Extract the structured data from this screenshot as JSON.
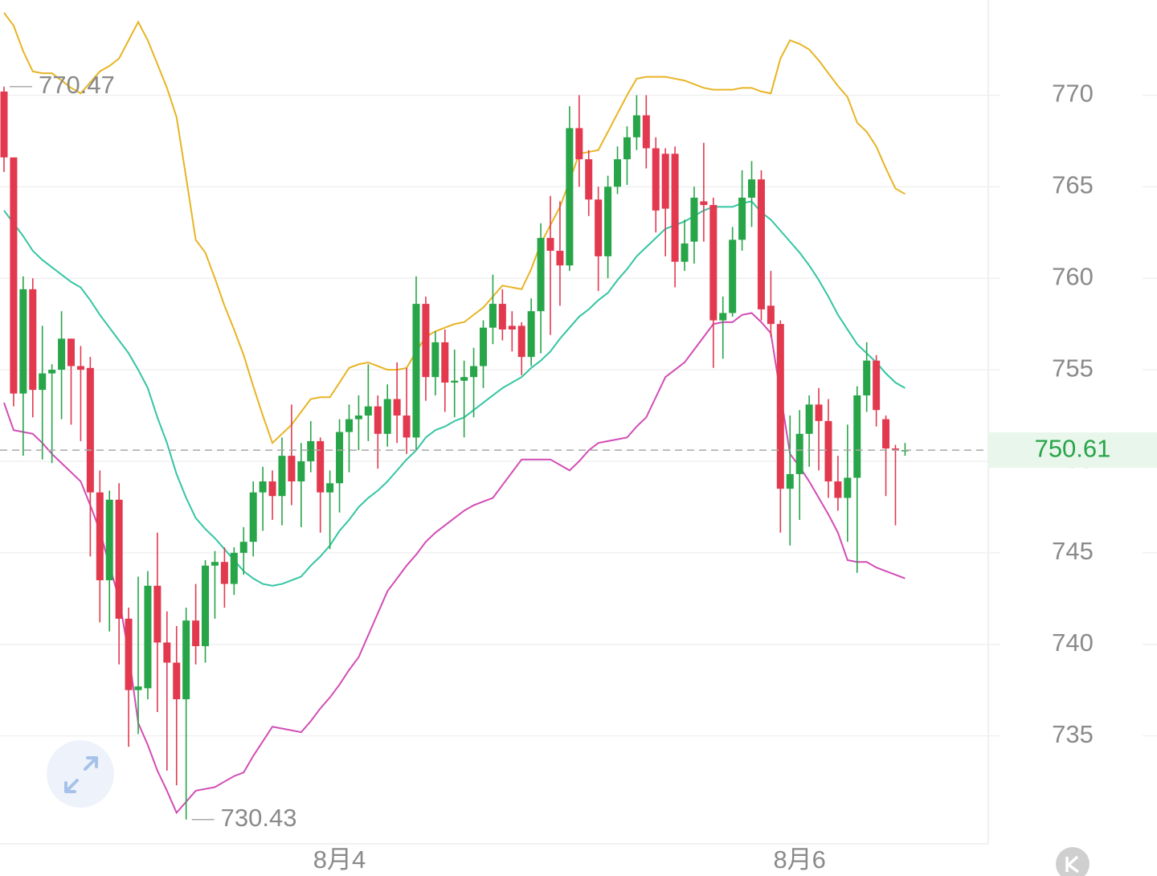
{
  "chart_data": {
    "type": "candlestick",
    "categories": [
      null,
      null,
      null,
      null,
      null,
      null,
      null,
      null,
      null,
      null,
      null,
      null,
      null,
      null,
      null,
      null,
      null,
      null,
      null,
      null,
      null,
      null,
      null,
      null,
      null,
      null,
      null,
      null,
      null,
      null,
      null,
      null,
      null,
      null,
      null,
      "8月4",
      null,
      null,
      null,
      null,
      null,
      null,
      null,
      null,
      null,
      null,
      null,
      null,
      null,
      null,
      null,
      null,
      null,
      null,
      null,
      null,
      null,
      null,
      null,
      null,
      null,
      null,
      null,
      null,
      null,
      null,
      null,
      null,
      null,
      null,
      null,
      null,
      null,
      null,
      null,
      null,
      null,
      null,
      null,
      null,
      null,
      null,
      null,
      "8月6",
      null,
      null,
      null,
      null,
      null,
      null,
      null,
      null,
      null,
      null,
      null
    ],
    "open": [
      770.2,
      766.6,
      753.7,
      759.4,
      753.9,
      754.8,
      755.0,
      756.7,
      755.2,
      755.1,
      748.3,
      743.5,
      747.9,
      741.4,
      737.5,
      737.6,
      743.2,
      740.1,
      739.0,
      737.0,
      741.3,
      739.9,
      744.3,
      744.5,
      743.3,
      745.0,
      745.6,
      748.3,
      748.9,
      748.1,
      750.3,
      748.9,
      750.0,
      751.1,
      748.3,
      748.8,
      751.6,
      752.3,
      752.5,
      753.0,
      751.5,
      753.4,
      752.5,
      751.3,
      758.6,
      754.6,
      756.5,
      754.3,
      754.4,
      754.6,
      755.2,
      757.3,
      758.6,
      757.4,
      757.4,
      755.7,
      758.2,
      762.2,
      761.5,
      760.7,
      768.2,
      766.5,
      764.3,
      761.2,
      765.0,
      766.5,
      767.7,
      768.9,
      767.1,
      766.8,
      766.8,
      760.9,
      762.0,
      764.2,
      764.0,
      757.7,
      758.1,
      762.1,
      764.4,
      765.4,
      758.5,
      757.5,
      748.5,
      749.3,
      751.5,
      753.1,
      752.2,
      748.9,
      748.0,
      749.1,
      753.6,
      755.5,
      752.3,
      750.7,
      750.6
    ],
    "high": [
      770.47,
      766.6,
      760.1,
      760.0,
      757.4,
      755.3,
      758.2,
      756.7,
      756.3,
      755.7,
      749.5,
      748.4,
      748.8,
      742.0,
      743.7,
      744.0,
      746.1,
      741.8,
      741.0,
      742.0,
      743.3,
      744.6,
      745.1,
      745.3,
      745.3,
      746.4,
      748.9,
      749.7,
      749.5,
      751.3,
      753.1,
      751.0,
      752.2,
      751.3,
      749.5,
      752.3,
      753.1,
      753.6,
      755.3,
      753.6,
      754.2,
      755.4,
      755.1,
      760.1,
      759.0,
      757.1,
      757.2,
      756.1,
      755.5,
      756.2,
      757.7,
      760.2,
      759.4,
      758.2,
      757.6,
      758.9,
      763.0,
      764.5,
      764.2,
      769.4,
      770.0,
      767.0,
      765.0,
      765.6,
      767.2,
      768.3,
      770.0,
      770.0,
      767.7,
      767.1,
      767.2,
      763.2,
      765.0,
      767.4,
      764.4,
      759.0,
      762.8,
      765.9,
      766.4,
      765.9,
      760.4,
      757.7,
      752.5,
      752.8,
      753.6,
      754.0,
      753.4,
      750.3,
      752.0,
      754.1,
      756.5,
      755.8,
      752.5,
      750.9,
      751.0
    ],
    "low": [
      765.8,
      753.0,
      750.3,
      752.4,
      750.1,
      749.9,
      752.3,
      752.0,
      751.1,
      744.8,
      741.2,
      740.7,
      738.9,
      734.4,
      735.1,
      737.0,
      736.3,
      733.1,
      732.3,
      730.43,
      738.9,
      739.0,
      741.4,
      742.0,
      742.7,
      743.8,
      744.8,
      746.2,
      746.8,
      746.5,
      747.6,
      746.4,
      749.4,
      746.1,
      745.2,
      747.2,
      749.4,
      750.6,
      751.1,
      749.6,
      750.8,
      751.0,
      750.4,
      750.6,
      753.3,
      753.6,
      752.7,
      752.4,
      751.3,
      752.4,
      754.0,
      756.4,
      756.6,
      756.0,
      754.7,
      755.2,
      755.9,
      756.9,
      758.5,
      760.4,
      765.0,
      763.4,
      759.3,
      760.0,
      764.6,
      765.1,
      767.0,
      766.0,
      762.5,
      761.2,
      759.5,
      760.4,
      760.8,
      762.0,
      755.1,
      755.6,
      757.9,
      761.5,
      762.8,
      757.7,
      756.8,
      746.1,
      745.4,
      746.8,
      749.7,
      749.5,
      748.0,
      747.3,
      745.6,
      743.9,
      752.7,
      751.9,
      748.1,
      746.5,
      750.3
    ],
    "close": [
      766.6,
      753.7,
      759.4,
      753.9,
      754.8,
      755.0,
      756.7,
      755.2,
      755.0,
      748.3,
      743.5,
      747.9,
      741.4,
      737.5,
      737.7,
      743.2,
      740.1,
      739.0,
      737.0,
      741.3,
      739.9,
      744.3,
      744.5,
      743.3,
      745.0,
      745.6,
      748.3,
      748.9,
      748.1,
      750.3,
      748.9,
      750.0,
      751.1,
      748.3,
      748.8,
      751.6,
      752.3,
      752.5,
      753.0,
      751.5,
      753.4,
      752.5,
      751.3,
      758.6,
      754.6,
      756.5,
      754.3,
      754.4,
      754.6,
      755.2,
      757.3,
      758.6,
      757.2,
      757.2,
      755.7,
      758.2,
      762.2,
      761.5,
      760.7,
      768.2,
      766.5,
      764.3,
      761.2,
      765.0,
      766.5,
      767.7,
      768.9,
      767.1,
      763.7,
      763.8,
      760.9,
      761.9,
      764.4,
      764.0,
      757.7,
      758.1,
      762.1,
      764.4,
      765.4,
      758.3,
      757.5,
      748.5,
      749.3,
      751.5,
      753.1,
      752.2,
      748.9,
      748.0,
      749.1,
      753.6,
      755.5,
      752.8,
      750.7,
      750.6,
      750.61
    ],
    "up_color": "#27a548",
    "down_color": "#e2394f",
    "bands": [
      {
        "color": "#e8b425",
        "values": [
          774.5,
          773.8,
          772.4,
          771.3,
          771.2,
          771.2,
          770.8,
          770.4,
          770.1,
          770.7,
          771.3,
          771.6,
          772.0,
          773.0,
          774.0,
          773.0,
          771.7,
          770.4,
          768.8,
          765.5,
          762.1,
          761.4,
          760.0,
          758.5,
          757.2,
          755.8,
          754.1,
          752.5,
          751.0,
          751.5,
          752.0,
          752.7,
          753.4,
          753.5,
          753.5,
          754.3,
          755.1,
          755.3,
          755.4,
          755.2,
          755.0,
          755.0,
          755.1,
          756.0,
          756.8,
          757.1,
          757.3,
          757.5,
          757.6,
          758.0,
          758.4,
          759.0,
          759.6,
          759.5,
          759.4,
          760.5,
          761.9,
          762.9,
          763.9,
          765.3,
          766.8,
          766.9,
          767.0,
          768.0,
          769.0,
          770.0,
          770.9,
          771.0,
          771.0,
          771.0,
          770.9,
          770.8,
          770.6,
          770.4,
          770.3,
          770.3,
          770.3,
          770.4,
          770.4,
          770.2,
          770.1,
          772.0,
          773.0,
          772.8,
          772.5,
          771.9,
          771.2,
          770.5,
          769.9,
          768.5,
          768.0,
          767.2,
          766.0,
          764.9,
          764.6
        ]
      },
      {
        "color": "#34c5a2",
        "values": [
          763.7,
          763.0,
          762.3,
          761.5,
          761.0,
          760.6,
          760.2,
          759.8,
          759.5,
          758.8,
          758.0,
          757.3,
          756.6,
          755.9,
          755.0,
          754.0,
          752.4,
          751.0,
          749.3,
          748.0,
          746.9,
          746.3,
          745.8,
          745.2,
          744.6,
          744.0,
          743.6,
          743.3,
          743.2,
          743.3,
          743.5,
          743.7,
          744.3,
          744.8,
          745.4,
          746.2,
          746.8,
          747.5,
          748.0,
          748.4,
          748.9,
          749.5,
          750.1,
          750.6,
          751.3,
          751.7,
          751.9,
          752.2,
          752.4,
          752.8,
          753.2,
          753.6,
          754.0,
          754.3,
          754.6,
          755.1,
          755.5,
          756.0,
          756.7,
          757.3,
          757.9,
          758.3,
          758.8,
          759.2,
          759.9,
          760.5,
          761.2,
          761.7,
          762.2,
          762.7,
          762.9,
          763.1,
          763.4,
          763.7,
          763.9,
          763.9,
          763.9,
          764.1,
          764.2,
          763.6,
          763.2,
          762.6,
          762.0,
          761.4,
          760.7,
          759.9,
          759.0,
          758.0,
          757.2,
          756.4,
          755.9,
          755.4,
          754.8,
          754.3,
          754.0
        ]
      },
      {
        "color": "#d24db6",
        "values": [
          753.2,
          751.7,
          751.6,
          751.5,
          751.0,
          750.4,
          749.9,
          749.4,
          748.9,
          747.6,
          746.2,
          744.3,
          742.5,
          739.5,
          735.7,
          734.5,
          733.1,
          732.0,
          730.8,
          731.4,
          732.0,
          732.1,
          732.2,
          732.5,
          732.8,
          733.0,
          733.9,
          734.7,
          735.5,
          735.4,
          735.3,
          735.2,
          735.8,
          736.5,
          737.1,
          737.8,
          738.6,
          739.3,
          740.5,
          741.7,
          742.9,
          743.6,
          744.3,
          744.9,
          745.6,
          746.1,
          746.5,
          746.9,
          747.3,
          747.6,
          747.8,
          748.0,
          748.7,
          749.4,
          750.1,
          750.1,
          750.1,
          750.1,
          749.8,
          749.5,
          750.0,
          750.6,
          751.0,
          751.1,
          751.2,
          751.3,
          751.9,
          752.4,
          753.5,
          754.6,
          755.0,
          755.4,
          756.1,
          756.8,
          757.5,
          757.6,
          757.6,
          758.0,
          758.1,
          757.6,
          757.0,
          753.7,
          750.4,
          749.7,
          748.9,
          748.0,
          747.1,
          746.1,
          744.6,
          744.5,
          744.5,
          744.2,
          744.0,
          743.8,
          743.6
        ]
      }
    ],
    "high_label": 770.47,
    "low_label": 730.43,
    "last_price": 750.61,
    "ylim": [
      729.1,
      775.2
    ],
    "yticks": [
      735,
      740,
      745,
      750,
      755,
      760,
      765,
      770
    ],
    "grid": true
  }
}
